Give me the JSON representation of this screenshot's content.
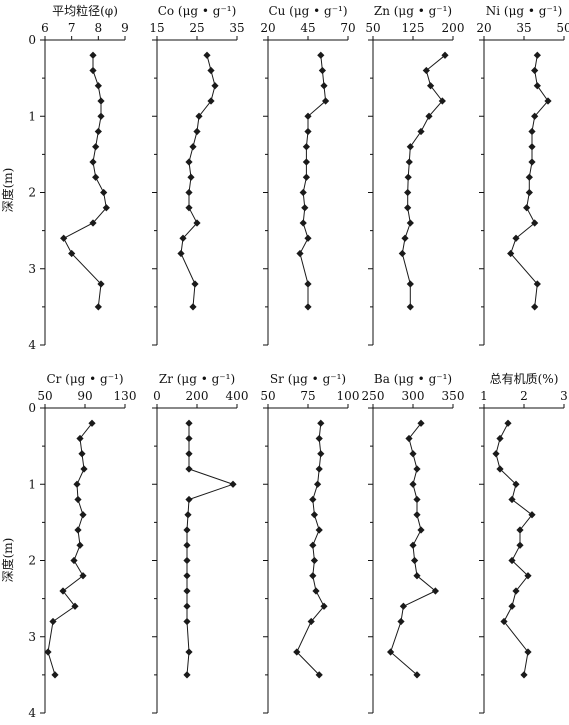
{
  "figure": {
    "depth_label": "深度(m)",
    "depth_ticks": [
      "0",
      "1",
      "2",
      "3",
      "4"
    ],
    "line_color": "#1a1a1a",
    "marker_color": "#1a1a1a"
  },
  "chart_data": [
    {
      "type": "line",
      "title": "平均粒径(φ)",
      "xlim": [
        6,
        9
      ],
      "ticks": [
        "6",
        "7",
        "8",
        "9"
      ],
      "ylabel": "深度(m)",
      "ylim": [
        0,
        4
      ],
      "y": [
        0.2,
        0.4,
        0.6,
        0.8,
        1.0,
        1.2,
        1.4,
        1.6,
        1.8,
        2.0,
        2.2,
        2.4,
        2.6,
        2.8,
        3.2,
        3.5
      ],
      "x": [
        7.8,
        7.8,
        8.0,
        8.1,
        8.1,
        8.0,
        7.9,
        7.8,
        7.9,
        8.2,
        8.3,
        7.8,
        6.7,
        7.0,
        8.1,
        8.0
      ]
    },
    {
      "type": "line",
      "title": "Co (μg • g⁻¹)",
      "xlim": [
        15,
        35
      ],
      "ticks": [
        "15",
        "25",
        "35"
      ],
      "ylabel": "深度(m)",
      "ylim": [
        0,
        4
      ],
      "y": [
        0.2,
        0.4,
        0.6,
        0.8,
        1.0,
        1.2,
        1.4,
        1.6,
        1.8,
        2.0,
        2.2,
        2.4,
        2.6,
        2.8,
        3.2,
        3.5
      ],
      "x": [
        27.5,
        28.5,
        29.5,
        28.5,
        25.5,
        25.0,
        24.0,
        23.0,
        23.5,
        23.0,
        23.0,
        25.0,
        21.5,
        21.0,
        24.5,
        24.0
      ]
    },
    {
      "type": "line",
      "title": "Cu (μg • g⁻¹)",
      "xlim": [
        20,
        70
      ],
      "ticks": [
        "20",
        "45",
        "70"
      ],
      "ylabel": "深度(m)",
      "ylim": [
        0,
        4
      ],
      "y": [
        0.2,
        0.4,
        0.6,
        0.8,
        1.0,
        1.2,
        1.4,
        1.6,
        1.8,
        2.0,
        2.2,
        2.4,
        2.6,
        2.8,
        3.2,
        3.5
      ],
      "x": [
        53,
        54,
        55,
        56,
        45,
        45,
        44,
        44,
        44,
        42,
        43,
        42,
        45,
        40,
        45,
        45
      ]
    },
    {
      "type": "line",
      "title": "Zn (μg • g⁻¹)",
      "xlim": [
        50,
        200
      ],
      "ticks": [
        "50",
        "125",
        "200"
      ],
      "ylabel": "深度(m)",
      "ylim": [
        0,
        4
      ],
      "y": [
        0.2,
        0.4,
        0.6,
        0.8,
        1.0,
        1.2,
        1.4,
        1.6,
        1.8,
        2.0,
        2.2,
        2.4,
        2.6,
        2.8,
        3.2,
        3.5
      ],
      "x": [
        185,
        150,
        158,
        180,
        155,
        140,
        120,
        118,
        116,
        115,
        115,
        120,
        110,
        105,
        120,
        120
      ]
    },
    {
      "type": "line",
      "title": "Ni (μg • g⁻¹)",
      "xlim": [
        20,
        50
      ],
      "ticks": [
        "20",
        "35",
        "50"
      ],
      "ylabel": "深度(m)",
      "ylim": [
        0,
        4
      ],
      "y": [
        0.2,
        0.4,
        0.6,
        0.8,
        1.0,
        1.2,
        1.4,
        1.6,
        1.8,
        2.0,
        2.2,
        2.4,
        2.6,
        2.8,
        3.2,
        3.5
      ],
      "x": [
        40,
        39,
        40,
        44,
        39,
        38,
        38,
        38,
        37,
        37,
        36,
        39,
        32,
        30,
        40,
        39
      ]
    },
    {
      "type": "line",
      "title": "Cr (μg • g⁻¹)",
      "xlim": [
        50,
        130
      ],
      "ticks": [
        "50",
        "90",
        "130"
      ],
      "ylabel": "深度(m)",
      "ylim": [
        0,
        4
      ],
      "y": [
        0.2,
        0.4,
        0.6,
        0.8,
        1.0,
        1.2,
        1.4,
        1.6,
        1.8,
        2.0,
        2.2,
        2.4,
        2.6,
        2.8,
        3.2,
        3.5
      ],
      "x": [
        97,
        85,
        87,
        89,
        82,
        83,
        88,
        83,
        85,
        79,
        88,
        68,
        80,
        58,
        53,
        60
      ]
    },
    {
      "type": "line",
      "title": "Zr (μg • g⁻¹)",
      "xlim": [
        0,
        400
      ],
      "ticks": [
        "0",
        "200",
        "400"
      ],
      "ylabel": "深度(m)",
      "ylim": [
        0,
        4
      ],
      "y": [
        0.2,
        0.4,
        0.6,
        0.8,
        1.0,
        1.2,
        1.4,
        1.6,
        1.8,
        2.0,
        2.2,
        2.4,
        2.6,
        2.8,
        3.2,
        3.5
      ],
      "x": [
        160,
        160,
        160,
        160,
        380,
        160,
        155,
        150,
        150,
        150,
        150,
        150,
        150,
        150,
        160,
        150
      ]
    },
    {
      "type": "line",
      "title": "Sr (μg • g⁻¹)",
      "xlim": [
        50,
        100
      ],
      "ticks": [
        "50",
        "75",
        "100"
      ],
      "ylabel": "深度(m)",
      "ylim": [
        0,
        4
      ],
      "y": [
        0.2,
        0.4,
        0.6,
        0.8,
        1.0,
        1.2,
        1.4,
        1.6,
        1.8,
        2.0,
        2.2,
        2.4,
        2.6,
        2.8,
        3.2,
        3.5
      ],
      "x": [
        83,
        82,
        83,
        82,
        81,
        78,
        79,
        82,
        78,
        79,
        78,
        80,
        85,
        77,
        68,
        82
      ]
    },
    {
      "type": "line",
      "title": "Ba (μg • g⁻¹)",
      "xlim": [
        250,
        350
      ],
      "ticks": [
        "250",
        "300",
        "350"
      ],
      "ylabel": "深度(m)",
      "ylim": [
        0,
        4
      ],
      "y": [
        0.2,
        0.4,
        0.6,
        0.8,
        1.0,
        1.2,
        1.4,
        1.6,
        1.8,
        2.0,
        2.2,
        2.4,
        2.6,
        2.8,
        3.2,
        3.5
      ],
      "x": [
        310,
        295,
        300,
        305,
        300,
        305,
        305,
        310,
        300,
        302,
        305,
        328,
        288,
        285,
        272,
        305
      ]
    },
    {
      "type": "line",
      "title": "总有机质(%)",
      "xlim": [
        1,
        3
      ],
      "ticks": [
        "1",
        "2",
        "3"
      ],
      "ylabel": "深度(m)",
      "ylim": [
        0,
        4
      ],
      "y": [
        0.2,
        0.4,
        0.6,
        0.8,
        1.0,
        1.2,
        1.4,
        1.6,
        1.8,
        2.0,
        2.2,
        2.4,
        2.6,
        2.8,
        3.2,
        3.5
      ],
      "x": [
        1.6,
        1.4,
        1.3,
        1.4,
        1.8,
        1.7,
        2.2,
        1.9,
        1.9,
        1.7,
        2.1,
        1.8,
        1.7,
        1.5,
        2.1,
        2.0
      ]
    }
  ]
}
